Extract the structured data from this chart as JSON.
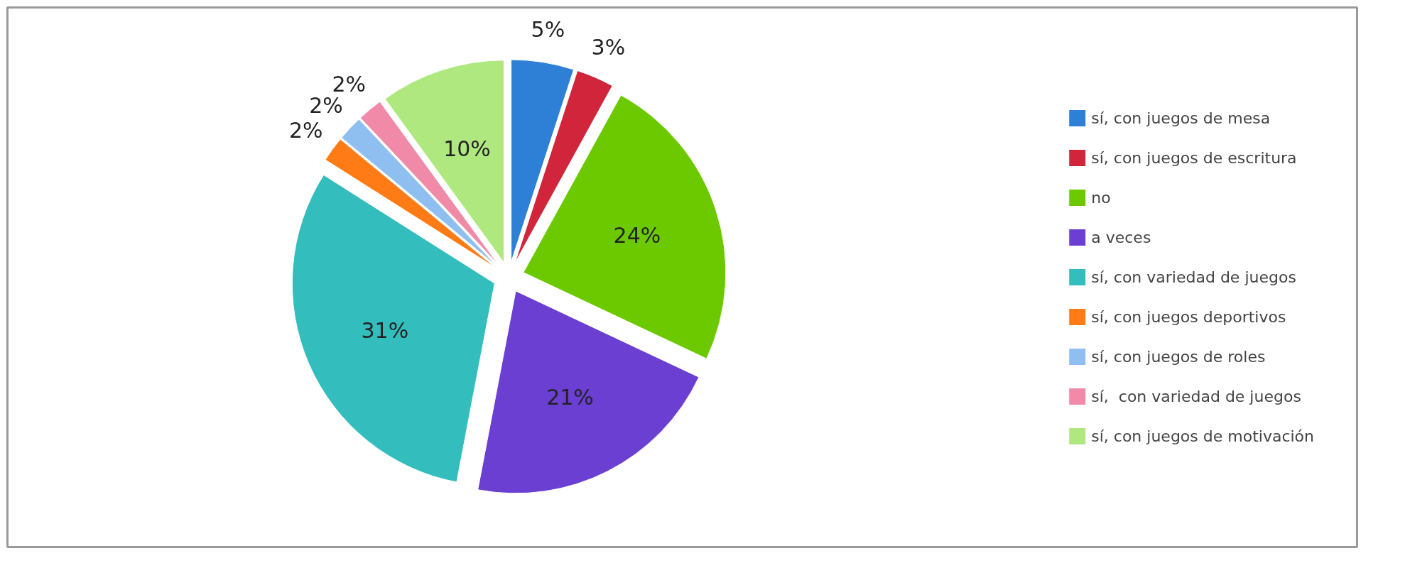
{
  "chart_data": {
    "type": "pie",
    "categories": [
      "sí, con juegos de mesa",
      "sí, con juegos de escritura",
      "no",
      "a veces",
      "sí, con variedad de juegos",
      "sí, con juegos deportivos",
      "sí, con juegos de roles",
      "sí,  con variedad de juegos",
      "sí, con juegos de motivación"
    ],
    "values": [
      5,
      3,
      24,
      21,
      31,
      2,
      2,
      2,
      10
    ],
    "colors": [
      "#2e7fd6",
      "#d0253a",
      "#6cc900",
      "#6a3fd1",
      "#33bdbd",
      "#ff7b16",
      "#8fbff0",
      "#f08aa8",
      "#b0e880"
    ],
    "value_labels": [
      "5%",
      "3%",
      "24%",
      "21%",
      "31%",
      "2%",
      "2%",
      "2%",
      "10%"
    ],
    "legend": "right"
  }
}
